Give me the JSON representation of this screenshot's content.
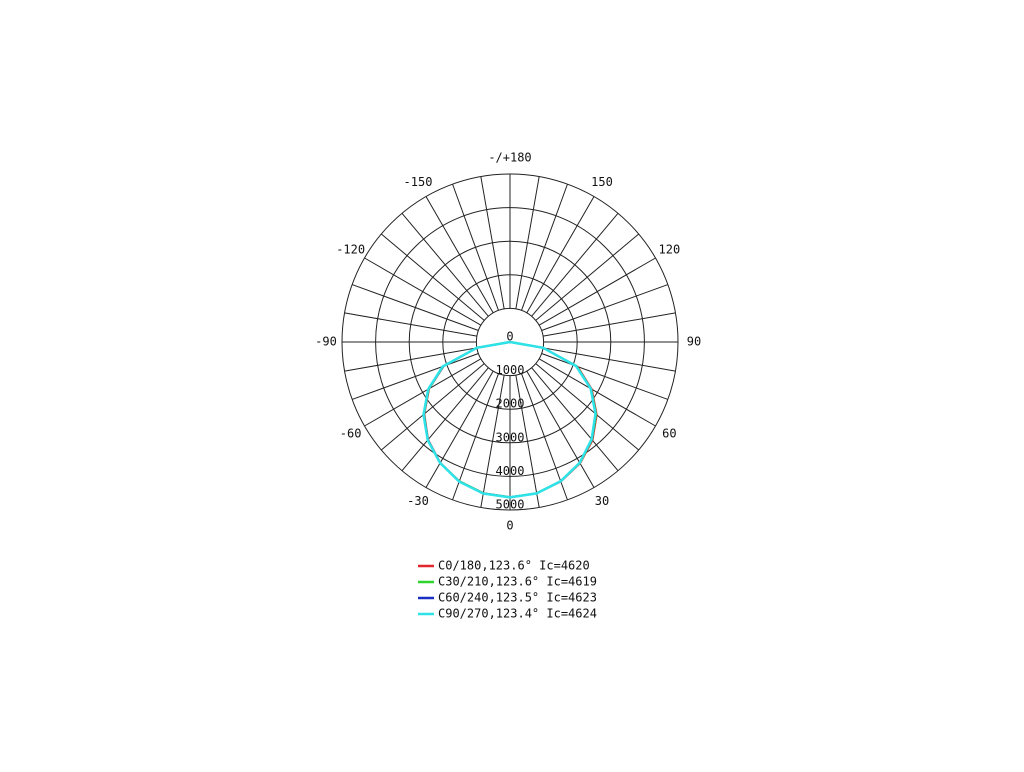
{
  "chart_data": {
    "type": "polar",
    "theta": [
      -90,
      -80,
      -70,
      -60,
      -50,
      -40,
      -30,
      -20,
      -10,
      0,
      10,
      20,
      30,
      40,
      50,
      60,
      70,
      80,
      90
    ],
    "series": [
      {
        "name": "C0/180,123.6° Ic=4620",
        "color": "#e3262b",
        "values": [
          0,
          1000,
          2100,
          2780,
          3330,
          3790,
          4150,
          4410,
          4570,
          4620,
          4570,
          4420,
          4170,
          3820,
          3370,
          2810,
          2140,
          1000,
          0
        ]
      },
      {
        "name": "C30/210,123.6° Ic=4619",
        "color": "#2ed52e",
        "values": [
          0,
          1000,
          2110,
          2790,
          3340,
          3800,
          4160,
          4410,
          4570,
          4619,
          4570,
          4410,
          4160,
          3800,
          3350,
          2790,
          2120,
          1000,
          0
        ]
      },
      {
        "name": "C60/240,123.5° Ic=4623",
        "color": "#1c2fc4",
        "values": [
          0,
          1000,
          2120,
          2800,
          3350,
          3800,
          4160,
          4420,
          4575,
          4623,
          4575,
          4410,
          4150,
          3790,
          3330,
          2780,
          2100,
          1000,
          0
        ]
      },
      {
        "name": "C90/270,123.4° Ic=4624",
        "color": "#2ee3e8",
        "values": [
          0,
          1000,
          2130,
          2810,
          3360,
          3810,
          4160,
          4420,
          4580,
          4624,
          4575,
          4410,
          4150,
          3780,
          3320,
          2770,
          2090,
          1000,
          0
        ]
      }
    ],
    "rlim": [
      0,
      5000
    ],
    "rticks": [
      0,
      1000,
      2000,
      3000,
      4000,
      5000
    ],
    "thetaticks": [
      {
        "value": 180,
        "label": "-/+180"
      },
      150,
      120,
      90,
      60,
      30,
      0,
      -30,
      -60,
      -90,
      -120,
      -150
    ]
  }
}
